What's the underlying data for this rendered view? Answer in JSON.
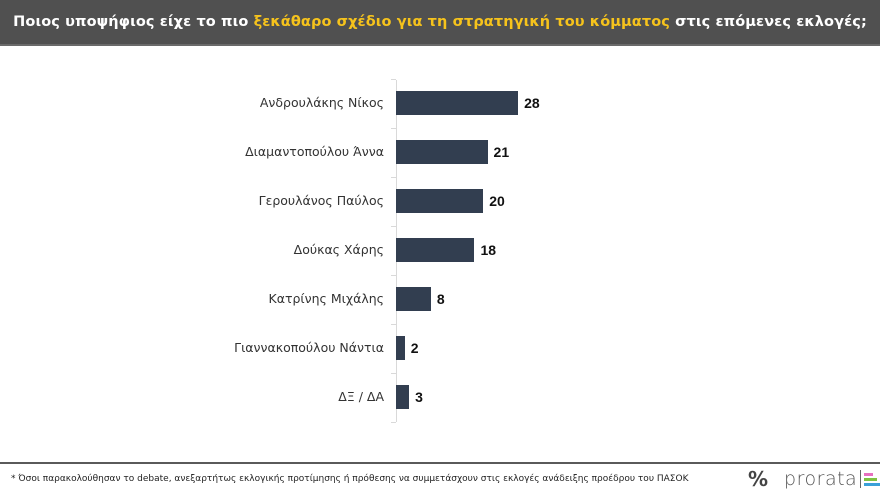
{
  "header": {
    "title_part1": "Ποιος υποψήφιος είχε το πιο ",
    "title_highlight": "ξεκάθαρο σχέδιο για τη στρατηγική του κόμματος",
    "title_part2": " στις επόμενες εκλογές;"
  },
  "colors": {
    "header_bg": "#505050",
    "highlight": "#f6c31c",
    "bar": "#323e50"
  },
  "chart_data": {
    "type": "bar",
    "orientation": "horizontal",
    "title": "Ποιος υποψήφιος είχε το πιο ξεκάθαρο σχέδιο για τη στρατηγική του κόμματος στις επόμενες εκλογές;",
    "categories": [
      "Ανδρουλάκης Νίκος",
      "Διαμαντοπούλου Άννα",
      "Γερουλάνος Παύλος",
      "Δούκας Χάρης",
      "Κατρίνης Μιχάλης",
      "Γιαννακοπούλου Νάντια",
      "ΔΞ / ΔΑ"
    ],
    "values": [
      28,
      21,
      20,
      18,
      8,
      2,
      3
    ],
    "value_labels": [
      "28",
      "21",
      "20",
      "18",
      "8",
      "2",
      "3"
    ],
    "xlabel": "",
    "ylabel": "",
    "grid": false,
    "legend": null,
    "unit": "%"
  },
  "footer": {
    "note": "* Όσοι παρακολούθησαν το debate, ανεξαρτήτως εκλογικής προτίμησης ή πρόθεσης να συμμετάσχουν στις εκλογές ανάδειξης προέδρου του ΠΑΣΟΚ",
    "logo_symbol": "%",
    "logo_text": "prorata",
    "logo_bar_colors": [
      "#e86fc0",
      "#7fc241",
      "#3aa0d8"
    ]
  }
}
